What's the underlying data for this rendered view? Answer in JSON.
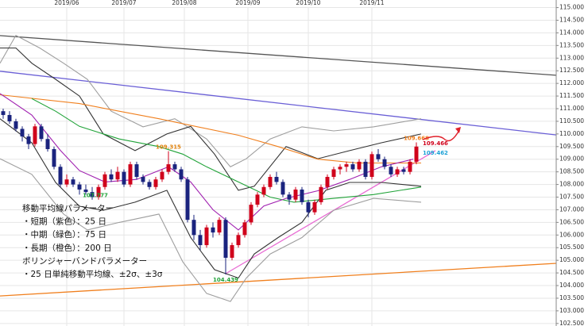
{
  "chart_data": {
    "type": "candlestick",
    "xlim": [
      -0.5,
      87
    ],
    "ylim": [
      102.4,
      115.3
    ],
    "xticks": [
      {
        "value": 10,
        "label": "2019/06"
      },
      {
        "value": 19,
        "label": "2019/07"
      },
      {
        "value": 28.5,
        "label": "2019/08"
      },
      {
        "value": 38.5,
        "label": "2019/09"
      },
      {
        "value": 48,
        "label": "2019/10"
      },
      {
        "value": 58,
        "label": "2019/11"
      }
    ],
    "yticks": [
      {
        "value": 115,
        "label": "115.000"
      },
      {
        "value": 114.5,
        "label": "114.500"
      },
      {
        "value": 114,
        "label": "114.000"
      },
      {
        "value": 113.5,
        "label": "113.500"
      },
      {
        "value": 113,
        "label": "113.000"
      },
      {
        "value": 112.5,
        "label": "112.500"
      },
      {
        "value": 112,
        "label": "112.000"
      },
      {
        "value": 111.5,
        "label": "111.500"
      },
      {
        "value": 111,
        "label": "111.000"
      },
      {
        "value": 110.5,
        "label": "110.500"
      },
      {
        "value": 110,
        "label": "110.000"
      },
      {
        "value": 109.5,
        "label": "109.500"
      },
      {
        "value": 109,
        "label": "109.000"
      },
      {
        "value": 108.5,
        "label": "108.500"
      },
      {
        "value": 108,
        "label": "108.000"
      },
      {
        "value": 107.5,
        "label": "107.500"
      },
      {
        "value": 107,
        "label": "107.000"
      },
      {
        "value": 106.5,
        "label": "106.500"
      },
      {
        "value": 106,
        "label": "106.000"
      },
      {
        "value": 105.5,
        "label": "105.500"
      },
      {
        "value": 105,
        "label": "105.000"
      },
      {
        "value": 104.5,
        "label": "104.500"
      },
      {
        "value": 104,
        "label": "104.000"
      },
      {
        "value": 103.5,
        "label": "103.500"
      },
      {
        "value": 103,
        "label": "103.000"
      },
      {
        "value": 102.5,
        "label": "102.500"
      }
    ],
    "grid": true,
    "up_color": "#d0021b",
    "down_color": "#1a237e",
    "open": [
      110.9,
      110.75,
      110.5,
      110.2,
      109.9,
      109.6,
      110.3,
      109.8,
      109.4,
      108.7,
      108.0,
      108.2,
      108.0,
      107.8,
      107.7,
      107.5,
      107.9,
      108.4,
      108.2,
      108.5,
      108.0,
      108.8,
      108.3,
      108.1,
      107.9,
      108.2,
      108.5,
      108.8,
      108.6,
      108.2,
      106.6,
      106.0,
      105.6,
      106.3,
      106.1,
      106.6,
      105.1,
      105.6,
      106.0,
      106.5,
      107.2,
      107.6,
      107.9,
      108.3,
      108.1,
      107.6,
      107.4,
      107.8,
      107.3,
      106.9,
      107.3,
      107.9,
      108.3,
      108.6,
      108.7,
      108.8,
      108.6,
      108.9,
      108.3,
      109.2,
      109.0,
      108.7,
      108.4,
      108.6,
      108.5,
      108.9
    ],
    "high": [
      111.0,
      110.9,
      110.6,
      110.3,
      110.0,
      110.4,
      110.4,
      110.0,
      109.5,
      108.8,
      108.4,
      108.3,
      108.1,
      108.0,
      107.9,
      108.0,
      108.5,
      108.6,
      108.7,
      108.6,
      108.9,
      108.9,
      108.4,
      108.2,
      108.3,
      108.6,
      109.315,
      108.9,
      108.7,
      108.3,
      106.8,
      106.2,
      106.4,
      106.5,
      106.7,
      106.7,
      105.7,
      106.1,
      106.6,
      107.3,
      107.7,
      108.0,
      108.4,
      108.5,
      108.2,
      107.7,
      107.9,
      107.9,
      107.4,
      107.4,
      108.0,
      108.4,
      108.7,
      108.8,
      108.9,
      108.9,
      109.0,
      109.0,
      109.3,
      109.4,
      109.1,
      108.8,
      108.7,
      108.7,
      109.0,
      109.668
    ],
    "low": [
      110.6,
      110.4,
      110.1,
      109.7,
      109.4,
      109.5,
      109.7,
      109.3,
      108.6,
      107.9,
      107.9,
      107.9,
      107.6,
      107.6,
      107.4,
      107.4,
      107.8,
      108.1,
      108.1,
      107.9,
      107.9,
      108.2,
      108.0,
      107.8,
      107.8,
      108.1,
      108.4,
      108.5,
      108.1,
      106.5,
      105.8,
      105.4,
      105.5,
      105.9,
      106.0,
      104.439,
      105.0,
      105.5,
      105.9,
      106.4,
      107.1,
      107.5,
      107.8,
      108.0,
      107.5,
      107.2,
      107.3,
      107.2,
      106.7,
      106.8,
      107.2,
      107.8,
      108.2,
      108.4,
      108.5,
      108.5,
      108.5,
      108.2,
      108.2,
      108.9,
      108.6,
      108.3,
      108.3,
      108.4,
      108.4,
      108.8
    ],
    "close": [
      110.75,
      110.5,
      110.2,
      109.9,
      109.6,
      110.3,
      109.8,
      109.4,
      108.7,
      108.0,
      108.2,
      108.0,
      107.8,
      107.7,
      107.5,
      107.9,
      108.4,
      108.2,
      108.5,
      108.0,
      108.8,
      108.3,
      108.1,
      107.9,
      108.2,
      108.5,
      108.8,
      108.6,
      108.2,
      106.6,
      106.0,
      105.6,
      106.3,
      106.1,
      106.6,
      105.1,
      105.6,
      106.0,
      106.5,
      107.2,
      107.6,
      107.9,
      108.3,
      108.1,
      107.6,
      107.4,
      107.8,
      107.3,
      106.9,
      107.3,
      107.9,
      108.3,
      108.6,
      108.7,
      108.8,
      108.6,
      108.9,
      108.3,
      109.2,
      109.0,
      108.7,
      108.4,
      108.6,
      108.5,
      108.9,
      109.5
    ],
    "lines": [
      {
        "color": "#9e9e9e",
        "x": [
          -0.5,
          2,
          5.75,
          9.5,
          13.25,
          17,
          22,
          27,
          32,
          35.75,
          38.25,
          42,
          47,
          52,
          58.25,
          65.75
        ],
        "values": [
          112.8,
          113.9,
          113.4,
          112.8,
          112.16,
          110.9,
          110.28,
          110.6,
          109.8,
          108.7,
          109.02,
          109.8,
          110.28,
          110.12,
          110.28,
          110.6
        ]
      },
      {
        "color": "#9e9e9e",
        "x": [
          -0.5,
          4.5,
          9.5,
          13.25,
          18.25,
          24.5,
          28.25,
          32,
          35.75,
          38.25,
          42,
          47,
          52,
          58.25,
          65.75
        ],
        "values": [
          109.02,
          108.4,
          106.83,
          106.2,
          106.5,
          106.83,
          104.94,
          103.69,
          103.37,
          104.3,
          105.25,
          105.9,
          106.98,
          107.45,
          107.3
        ]
      },
      {
        "color": "#333333",
        "x": [
          -0.5,
          2,
          4.5,
          8.25,
          12,
          15.75,
          20.75,
          25.75,
          29.5,
          33.25,
          37,
          39.5,
          44.5,
          49.5,
          54.5,
          59.5,
          65.75
        ],
        "values": [
          113.4,
          113.4,
          112.8,
          112.16,
          111.5,
          110.0,
          109.34,
          110.0,
          110.3,
          109.2,
          107.77,
          107.93,
          109.5,
          109.02,
          109.34,
          109.65,
          110.0
        ]
      },
      {
        "color": "#333333",
        "x": [
          -0.5,
          4.5,
          8.25,
          12,
          15.75,
          20.75,
          25.75,
          29.5,
          33.25,
          37,
          39.5,
          43.25,
          47,
          50.75,
          54.5,
          59.5,
          65.75
        ],
        "values": [
          110.6,
          109.65,
          108.08,
          107.14,
          106.98,
          107.3,
          107.77,
          105.9,
          104.63,
          104.3,
          105.25,
          105.9,
          106.5,
          107.77,
          108.08,
          108.08,
          107.93
        ]
      },
      {
        "color": "#f07f1d",
        "x": [
          -0.5,
          12,
          24.5,
          37,
          43.25,
          49.5,
          55.75,
          65.75
        ],
        "values": [
          111.55,
          111.2,
          110.6,
          109.95,
          109.5,
          109.0,
          108.85,
          108.85
        ]
      },
      {
        "color": "#21a339",
        "x": [
          4.5,
          8.25,
          12,
          18.25,
          24.5,
          28.25,
          32,
          37,
          42,
          45.75,
          52,
          58.25,
          65.75
        ],
        "values": [
          111.4,
          110.9,
          110.3,
          109.8,
          109.5,
          109.2,
          108.7,
          108.1,
          107.5,
          107.3,
          107.45,
          107.6,
          107.9
        ]
      },
      {
        "color": "#a020b0",
        "x": [
          -0.5,
          4.5,
          9,
          12,
          16,
          21,
          26,
          29.5,
          33,
          37,
          41,
          44.5,
          49.5,
          54.5,
          59.5,
          64.5
        ],
        "values": [
          111.6,
          110.75,
          109.35,
          108.55,
          108.1,
          108.2,
          108.7,
          108.1,
          107.0,
          106.2,
          107.15,
          107.45,
          107.75,
          108.2,
          108.7,
          109.0
        ]
      }
    ],
    "trend_lines": [
      {
        "color": "#555555",
        "x": [
          -0.5,
          87
        ],
        "values": [
          113.89,
          112.32
        ]
      },
      {
        "color": "#6a5fd6",
        "x": [
          -0.5,
          87
        ],
        "values": [
          112.48,
          109.96
        ]
      },
      {
        "color": "#f07f1d",
        "x": [
          -0.5,
          87
        ],
        "values": [
          103.59,
          104.88
        ]
      },
      {
        "color": "#e86bd3",
        "x": [
          35,
          68
        ],
        "values": [
          104.47,
          109.34
        ]
      }
    ],
    "price_labels": [
      {
        "x": 26,
        "value": 109.315,
        "color": "#e0820c",
        "position": "above"
      },
      {
        "x": 14.5,
        "value": 107.777,
        "color": "#21a339",
        "position": "below"
      },
      {
        "x": 35,
        "value": 104.439,
        "color": "#21a339",
        "position": "below"
      },
      {
        "x": 65,
        "value": 109.668,
        "color": "#f07f1d",
        "position": "above"
      },
      {
        "x": 68,
        "value": 109.466,
        "color": "#d0021b",
        "position": "above"
      },
      {
        "x": 68,
        "value": 109.462,
        "color": "#1ba1d6",
        "position": "below"
      }
    ],
    "annotations": [
      "移動平均線パラメーター",
      "・短期（紫色）：25 日",
      "・中期（緑色）：75 日",
      "・長期（橙色）：200 日",
      "ボリンジャーバンドパラメーター",
      "・25 日単純移動平均線、±2σ、±3σ"
    ]
  }
}
